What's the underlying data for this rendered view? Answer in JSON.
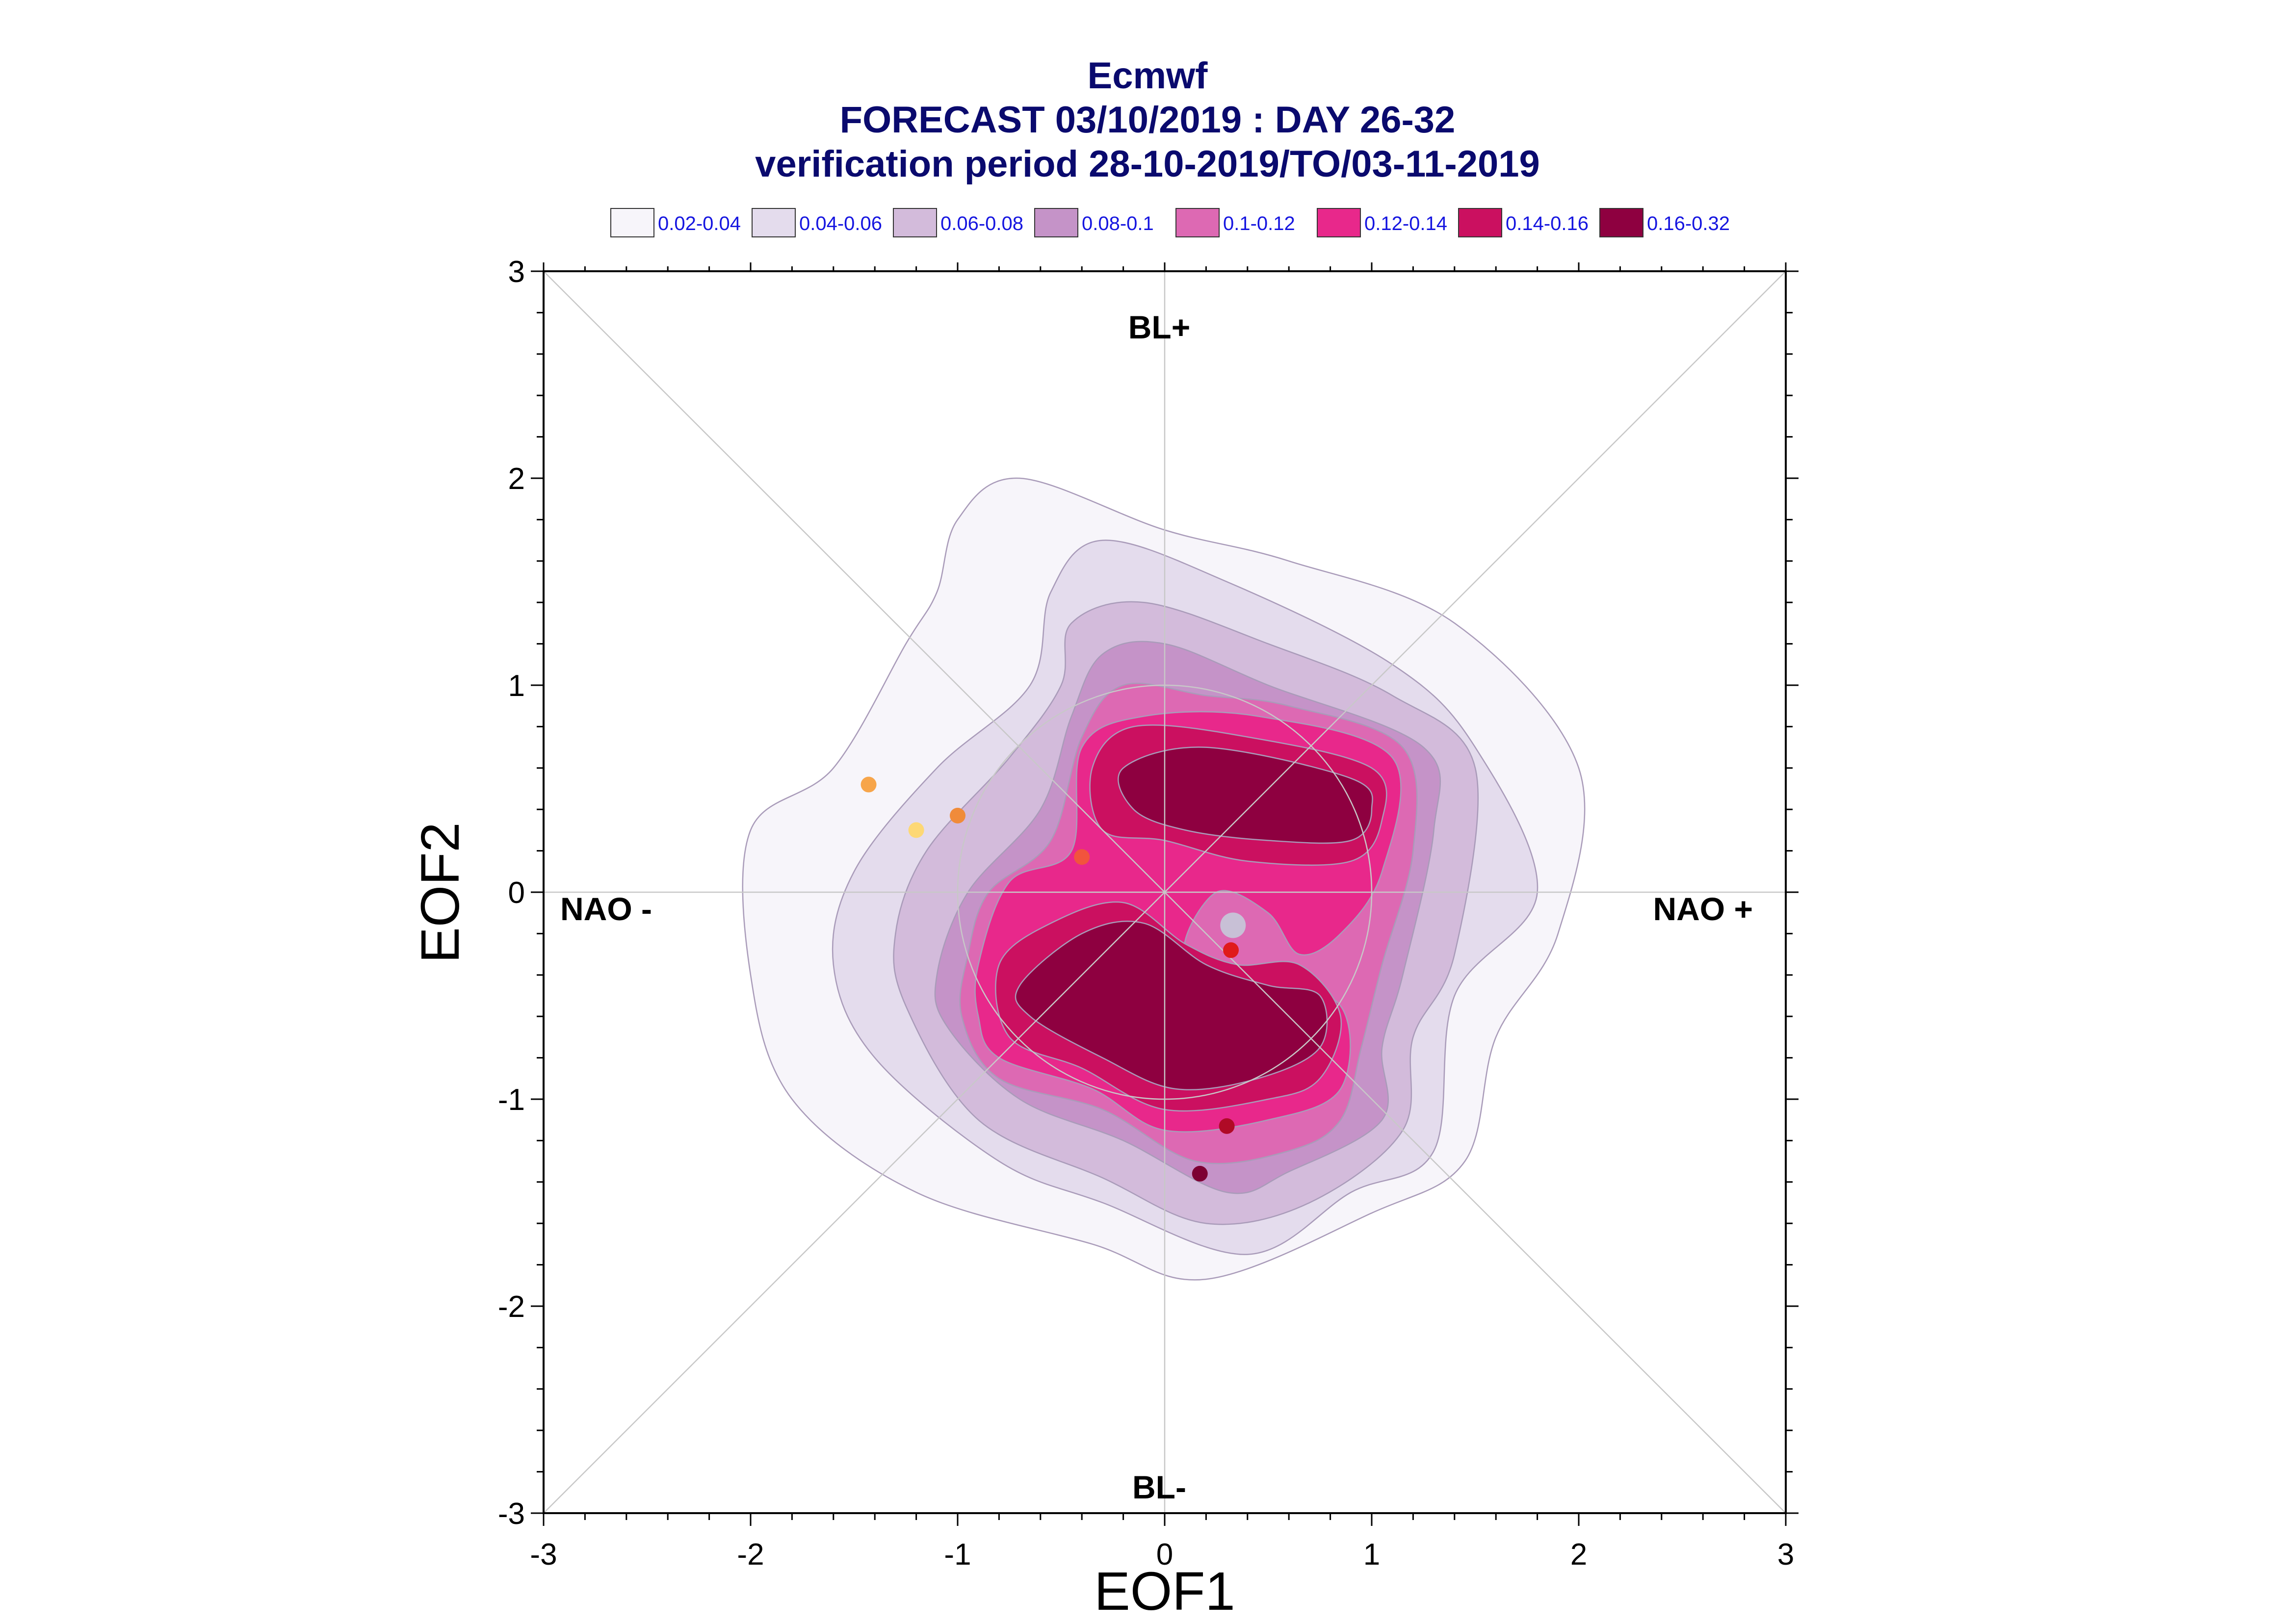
{
  "chart_data": {
    "type": "contour",
    "title": [
      "Ecmwf",
      "FORECAST 03/10/2019 : DAY 26-32",
      "verification period 28-10-2019/TO/03-11-2019"
    ],
    "xlabel": "EOF1",
    "ylabel": "EOF2",
    "xlim": [
      -3,
      3
    ],
    "ylim": [
      -3,
      3
    ],
    "xticks": [
      "-3",
      "-2",
      "-1",
      "0",
      "1",
      "2",
      "3"
    ],
    "yticks": [
      "3",
      "2",
      "1",
      "0",
      "-1",
      "-2",
      "-3"
    ],
    "regime_labels": {
      "top": "BL+",
      "bottom": "BL-",
      "left": "NAO -",
      "right": "NAO +"
    },
    "legend": [
      {
        "label": "0.02-0.04",
        "color": "#f7f5fa"
      },
      {
        "label": "0.04-0.06",
        "color": "#e4dced"
      },
      {
        "label": "0.06-0.08",
        "color": "#d3bbdb"
      },
      {
        "label": "0.08-0.1",
        "color": "#c593c8"
      },
      {
        "label": "0.1-0.12",
        "color": "#dd69b3"
      },
      {
        "label": "0.12-0.14",
        "color": "#e8288b"
      },
      {
        "label": "0.14-0.16",
        "color": "#cb1060"
      },
      {
        "label": "0.16-0.32",
        "color": "#8e0040"
      }
    ],
    "contours": [
      {
        "level": "0.02-0.04",
        "color": "#f7f5fa",
        "points": [
          [
            -2,
            -0.4
          ],
          [
            -2,
            0.3
          ],
          [
            -1.6,
            0.6
          ],
          [
            -1.25,
            1.2
          ],
          [
            -1.1,
            1.45
          ],
          [
            -1,
            1.8
          ],
          [
            -0.7,
            2
          ],
          [
            0,
            1.75
          ],
          [
            0.6,
            1.6
          ],
          [
            1.4,
            1.3
          ],
          [
            2,
            0.6
          ],
          [
            1.9,
            -0.2
          ],
          [
            1.6,
            -0.7
          ],
          [
            1.45,
            -1.3
          ],
          [
            1,
            -1.55
          ],
          [
            0.2,
            -1.87
          ],
          [
            -0.35,
            -1.7
          ],
          [
            -1.2,
            -1.45
          ],
          [
            -1.8,
            -1
          ]
        ]
      },
      {
        "level": "0.04-0.06",
        "color": "#e4dced",
        "points": [
          [
            -1.6,
            -0.35
          ],
          [
            -1.5,
            0.1
          ],
          [
            -1.1,
            0.6
          ],
          [
            -0.65,
            1
          ],
          [
            -0.55,
            1.45
          ],
          [
            -0.3,
            1.7
          ],
          [
            0.3,
            1.5
          ],
          [
            1.1,
            1.1
          ],
          [
            1.5,
            0.7
          ],
          [
            1.8,
            0
          ],
          [
            1.4,
            -0.5
          ],
          [
            1.3,
            -1.25
          ],
          [
            0.9,
            -1.45
          ],
          [
            0.4,
            -1.75
          ],
          [
            -0.3,
            -1.5
          ],
          [
            -0.8,
            -1.3
          ],
          [
            -1.4,
            -0.8
          ]
        ]
      },
      {
        "level": "0.06-0.08",
        "color": "#d3bbdb",
        "points": [
          [
            -1.3,
            -0.2
          ],
          [
            -1.15,
            0.2
          ],
          [
            -0.75,
            0.65
          ],
          [
            -0.5,
            1
          ],
          [
            -0.45,
            1.3
          ],
          [
            -0.1,
            1.4
          ],
          [
            0.5,
            1.2
          ],
          [
            1.1,
            0.95
          ],
          [
            1.5,
            0.6
          ],
          [
            1.4,
            -0.3
          ],
          [
            1.2,
            -0.7
          ],
          [
            1.15,
            -1.15
          ],
          [
            0.7,
            -1.5
          ],
          [
            0.2,
            -1.6
          ],
          [
            -0.3,
            -1.38
          ],
          [
            -0.9,
            -1.1
          ],
          [
            -1.25,
            -0.55
          ]
        ]
      },
      {
        "level": "0.08-0.1",
        "color": "#c593c8",
        "points": [
          [
            -1.1,
            -0.4
          ],
          [
            -0.95,
            0
          ],
          [
            -0.6,
            0.4
          ],
          [
            -0.45,
            0.85
          ],
          [
            -0.3,
            1.15
          ],
          [
            0,
            1.2
          ],
          [
            0.5,
            1
          ],
          [
            1.25,
            0.7
          ],
          [
            1.3,
            0.3
          ],
          [
            1.15,
            -0.4
          ],
          [
            1.05,
            -0.75
          ],
          [
            1.05,
            -1.1
          ],
          [
            0.6,
            -1.35
          ],
          [
            0.3,
            -1.45
          ],
          [
            -0.2,
            -1.2
          ],
          [
            -0.7,
            -1
          ],
          [
            -1.05,
            -0.65
          ]
        ]
      },
      {
        "level": "0.1-0.12",
        "color": "#dd69b3",
        "points": [
          [
            -0.95,
            -0.3
          ],
          [
            -0.85,
            0
          ],
          [
            -0.55,
            0.25
          ],
          [
            -0.4,
            0.75
          ],
          [
            -0.2,
            1
          ],
          [
            0.2,
            0.95
          ],
          [
            0.6,
            0.9
          ],
          [
            1.15,
            0.7
          ],
          [
            1.2,
            0.2
          ],
          [
            1.05,
            -0.35
          ],
          [
            0.95,
            -0.75
          ],
          [
            0.85,
            -1.1
          ],
          [
            0.6,
            -1.25
          ],
          [
            0.15,
            -1.3
          ],
          [
            -0.3,
            -1.05
          ],
          [
            -0.8,
            -0.9
          ],
          [
            -0.98,
            -0.6
          ]
        ]
      },
      {
        "level": "0.12-0.14",
        "color": "#e8288b",
        "points": [
          [
            -0.9,
            -0.35
          ],
          [
            -0.75,
            0.05
          ],
          [
            -0.45,
            0.2
          ],
          [
            -0.4,
            0.7
          ],
          [
            -0.1,
            0.85
          ],
          [
            0.45,
            0.85
          ],
          [
            1.1,
            0.65
          ],
          [
            1.05,
            0.1
          ],
          [
            0.85,
            -0.2
          ],
          [
            0.65,
            -0.3
          ],
          [
            0.5,
            -0.1
          ],
          [
            0.25,
            0
          ],
          [
            0.1,
            -0.3
          ],
          [
            0.45,
            -0.4
          ],
          [
            0.85,
            -0.55
          ],
          [
            0.85,
            -0.95
          ],
          [
            0.5,
            -1.1
          ],
          [
            0,
            -1.15
          ],
          [
            -0.35,
            -0.95
          ],
          [
            -0.8,
            -0.8
          ],
          [
            -0.9,
            -0.6
          ]
        ]
      },
      {
        "level": "0.14-0.16",
        "color": "#cb1060",
        "points": [
          [
            -0.8,
            -0.35
          ],
          [
            -0.55,
            -0.15
          ],
          [
            -0.2,
            -0.05
          ],
          [
            0.1,
            -0.25
          ],
          [
            0.35,
            -0.35
          ],
          [
            0.65,
            -0.35
          ],
          [
            0.85,
            -0.6
          ],
          [
            0.75,
            -0.9
          ],
          [
            0.5,
            -1
          ],
          [
            0,
            -1.05
          ],
          [
            -0.4,
            -0.85
          ],
          [
            -0.75,
            -0.7
          ]
        ]
      },
      {
        "level": "0.14-0.16",
        "color": "#cb1060",
        "points": [
          [
            -0.35,
            0.6
          ],
          [
            -0.15,
            0.8
          ],
          [
            0.4,
            0.75
          ],
          [
            1,
            0.6
          ],
          [
            1.05,
            0.35
          ],
          [
            0.9,
            0.15
          ],
          [
            0.4,
            0.15
          ],
          [
            0,
            0.25
          ],
          [
            -0.3,
            0.3
          ]
        ]
      },
      {
        "level": "0.16-0.32",
        "color": "#8e0040",
        "points": [
          [
            -0.7,
            -0.45
          ],
          [
            -0.4,
            -0.2
          ],
          [
            -0.1,
            -0.15
          ],
          [
            0.2,
            -0.35
          ],
          [
            0.5,
            -0.45
          ],
          [
            0.75,
            -0.5
          ],
          [
            0.75,
            -0.75
          ],
          [
            0.45,
            -0.9
          ],
          [
            0.05,
            -0.95
          ],
          [
            -0.3,
            -0.8
          ],
          [
            -0.65,
            -0.6
          ]
        ]
      },
      {
        "level": "0.16-0.32",
        "color": "#8e0040",
        "points": [
          [
            -0.2,
            0.6
          ],
          [
            0.2,
            0.7
          ],
          [
            0.9,
            0.55
          ],
          [
            1,
            0.4
          ],
          [
            0.9,
            0.25
          ],
          [
            0.5,
            0.25
          ],
          [
            0.1,
            0.3
          ],
          [
            -0.15,
            0.4
          ]
        ]
      }
    ],
    "points": [
      {
        "x": -1.43,
        "y": 0.52,
        "color": "#f7a54a"
      },
      {
        "x": -1.2,
        "y": 0.3,
        "color": "#fdd875"
      },
      {
        "x": -1.0,
        "y": 0.37,
        "color": "#f08b3a"
      },
      {
        "x": -0.4,
        "y": 0.17,
        "color": "#f2543d"
      },
      {
        "x": 0.32,
        "y": -0.28,
        "color": "#e01a1a"
      },
      {
        "x": 0.3,
        "y": -1.13,
        "color": "#b00a26"
      },
      {
        "x": 0.17,
        "y": -1.36,
        "color": "#7d0033"
      }
    ],
    "origin_marker": {
      "x": 0.33,
      "y": -0.16,
      "color": "#c8c0d6"
    }
  }
}
